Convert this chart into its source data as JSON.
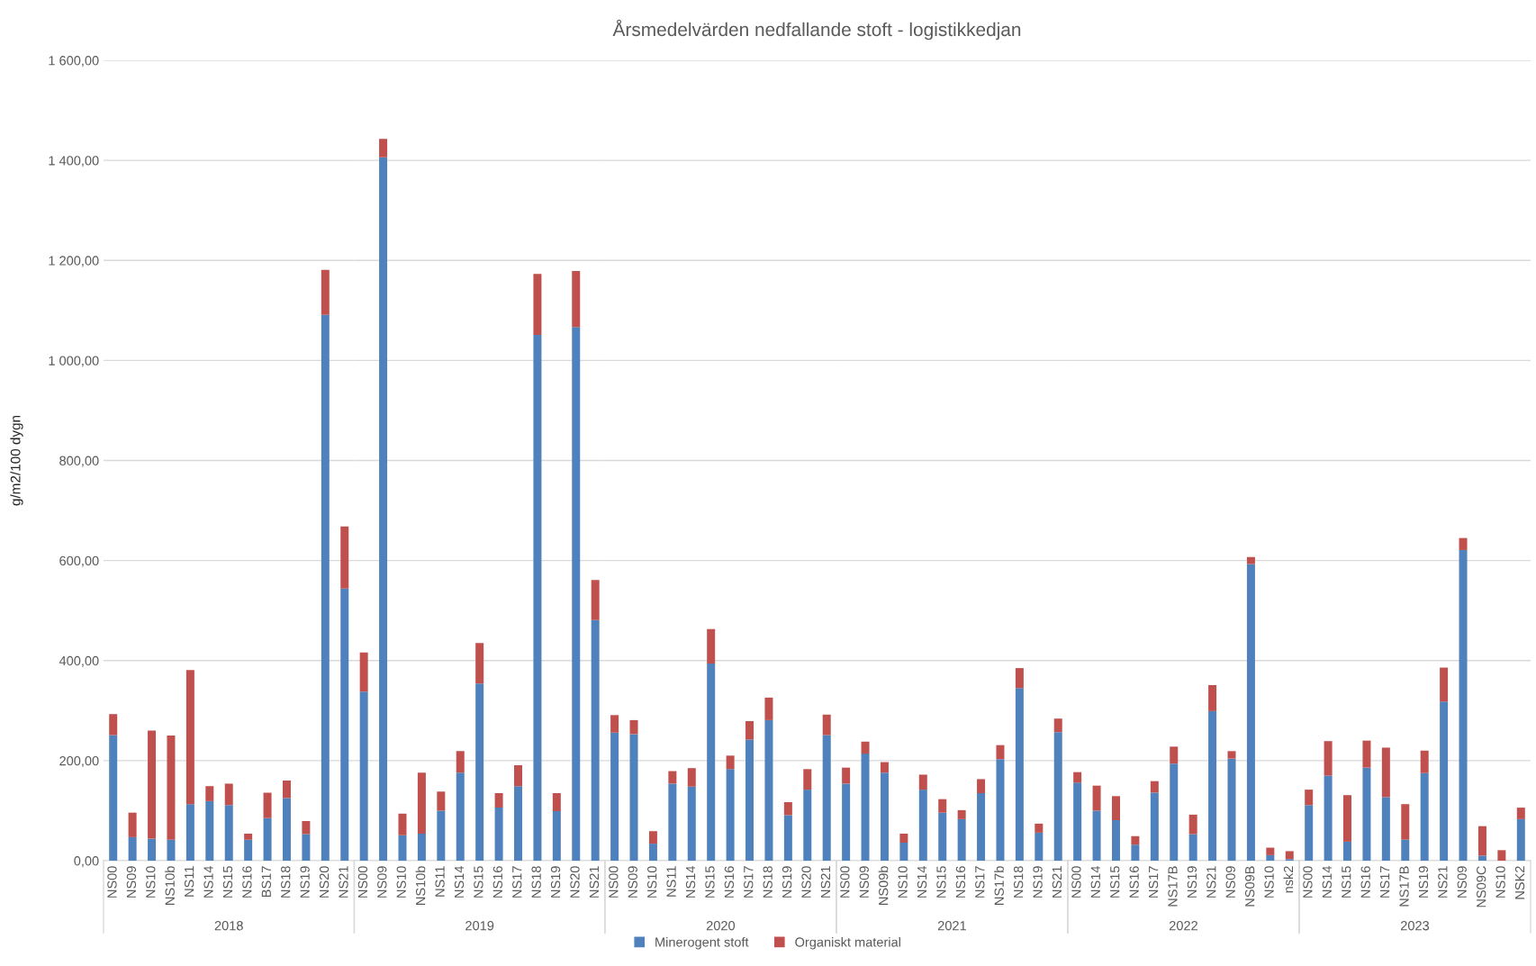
{
  "chart_data": [
    {
      "type": "bar",
      "ylabel": "g/m2/100 dygn",
      "xlabel": "2018",
      "stacked": true,
      "grid": "y",
      "legend": "bottom",
      "categories": [
        "NS00",
        "NS09",
        "NS10",
        "NS10b",
        "NS11",
        "NS14",
        "NS15",
        "NS16",
        "BS17",
        "NS18",
        "NS19",
        "NS20",
        "NS21"
      ],
      "series": [
        {
          "name": "Minerogent stoft",
          "color": "#4f81bd",
          "values": [
            251,
            47,
            44,
            42,
            113,
            119,
            111,
            42,
            85,
            125,
            53,
            1091,
            544
          ]
        },
        {
          "name": "Organiskt material",
          "color": "#c0504d",
          "values": [
            42,
            49,
            216,
            208,
            268,
            30,
            43,
            12,
            51,
            35,
            26,
            90,
            124
          ]
        }
      ],
      "ylim": [
        0,
        1600
      ],
      "yticks": [
        {
          "value": 0,
          "label": "0,00"
        },
        {
          "value": 200,
          "label": "200,00"
        },
        {
          "value": 400,
          "label": "400,00"
        },
        {
          "value": 600,
          "label": "600,00"
        },
        {
          "value": 800,
          "label": "800,00"
        },
        {
          "value": 1000,
          "label": "1 000,00"
        },
        {
          "value": 1200,
          "label": "1 200,00"
        },
        {
          "value": 1400,
          "label": "1 400,00"
        },
        {
          "value": 1600,
          "label": "1 600,00"
        }
      ]
    },
    {
      "type": "bar",
      "xlabel": "2019",
      "stacked": true,
      "grid": "y",
      "tick_labels": "x",
      "categories": [
        "NS00",
        "NS09",
        "NS10",
        "NS10b",
        "NS11",
        "NS14",
        "NS15",
        "NS16",
        "NS17",
        "NS18",
        "NS19",
        "NS20",
        "NS21"
      ],
      "series": [
        {
          "color": "#4f81bd",
          "values": [
            338,
            1406,
            51,
            54,
            100,
            176,
            354,
            106,
            149,
            1051,
            99,
            1067,
            481
          ]
        },
        {
          "color": "#c0504d",
          "values": [
            78,
            37,
            43,
            122,
            38,
            43,
            81,
            29,
            42,
            122,
            36,
            112,
            80
          ]
        }
      ],
      "ylim": [
        0,
        1600
      ],
      "yticks": [
        0,
        200,
        400,
        600,
        800,
        1000,
        1200,
        1400,
        1600
      ]
    },
    {
      "type": "bar",
      "title": "Årsmedelvärden nedfallande stoft - logistikkedjan",
      "xlabel": "2020",
      "stacked": true,
      "grid": "y",
      "tick_labels": "x",
      "categories": [
        "NS00",
        "NS09",
        "NS10",
        "NS11",
        "NS14",
        "NS15",
        "NS16",
        "NS17",
        "NS18",
        "NS19",
        "NS20",
        "NS21"
      ],
      "series": [
        {
          "color": "#4f81bd",
          "values": [
            256,
            253,
            34,
            154,
            148,
            394,
            183,
            242,
            281,
            91,
            142,
            251
          ]
        },
        {
          "color": "#c0504d",
          "values": [
            35,
            28,
            25,
            25,
            37,
            69,
            27,
            37,
            45,
            26,
            41,
            41
          ]
        }
      ],
      "ylim": [
        0,
        1600
      ],
      "yticks": [
        0,
        200,
        400,
        600,
        800,
        1000,
        1200,
        1400,
        1600
      ]
    },
    {
      "type": "bar",
      "xlabel": "2021",
      "stacked": true,
      "grid": "y",
      "tick_labels": "x",
      "categories": [
        "NS00",
        "NS09",
        "NS09b",
        "NS10",
        "NS14",
        "NS15",
        "NS16",
        "NS17",
        "NS17b",
        "NS18",
        "NS19",
        "NS21"
      ],
      "series": [
        {
          "color": "#4f81bd",
          "values": [
            154,
            214,
            176,
            36,
            142,
            96,
            83,
            135,
            203,
            345,
            56,
            257
          ]
        },
        {
          "color": "#c0504d",
          "values": [
            32,
            24,
            21,
            18,
            30,
            27,
            18,
            28,
            28,
            40,
            18,
            27
          ]
        }
      ],
      "ylim": [
        0,
        1600
      ],
      "yticks": [
        0,
        200,
        400,
        600,
        800,
        1000,
        1200,
        1400,
        1600
      ]
    },
    {
      "type": "bar",
      "xlabel": "2022",
      "stacked": true,
      "grid": "y",
      "tick_labels": "x",
      "categories": [
        "NS00",
        "NS14",
        "NS15",
        "NS16",
        "NS17",
        "NS17B",
        "NS19",
        "NS21",
        "NS09",
        "NS09B",
        "NS10",
        "nsk2"
      ],
      "series": [
        {
          "color": "#4f81bd",
          "values": [
            156,
            100,
            81,
            32,
            136,
            194,
            53,
            299,
            204,
            593,
            11,
            3
          ]
        },
        {
          "color": "#c0504d",
          "values": [
            21,
            50,
            48,
            17,
            23,
            34,
            39,
            52,
            15,
            14,
            15,
            16
          ]
        }
      ],
      "ylim": [
        0,
        1600
      ],
      "yticks": [
        0,
        200,
        400,
        600,
        800,
        1000,
        1200,
        1400,
        1600
      ]
    },
    {
      "type": "bar",
      "xlabel": "2023",
      "stacked": true,
      "grid": "y",
      "tick_labels": "x",
      "categories": [
        "NS00",
        "NS14",
        "NS15",
        "NS16",
        "NS17",
        "NS17B",
        "NS19",
        "NS21",
        "NS09",
        "NS09C",
        "NS10",
        "NSK2"
      ],
      "series": [
        {
          "color": "#4f81bd",
          "values": [
            111,
            170,
            38,
            186,
            127,
            42,
            175,
            318,
            621,
            10,
            0,
            83
          ]
        },
        {
          "color": "#c0504d",
          "values": [
            31,
            69,
            93,
            54,
            99,
            71,
            45,
            68,
            24,
            59,
            21,
            23
          ]
        }
      ],
      "ylim": [
        0,
        1600
      ],
      "yticks": [
        0,
        200,
        400,
        600,
        800,
        1000,
        1200,
        1400,
        1600
      ]
    }
  ]
}
